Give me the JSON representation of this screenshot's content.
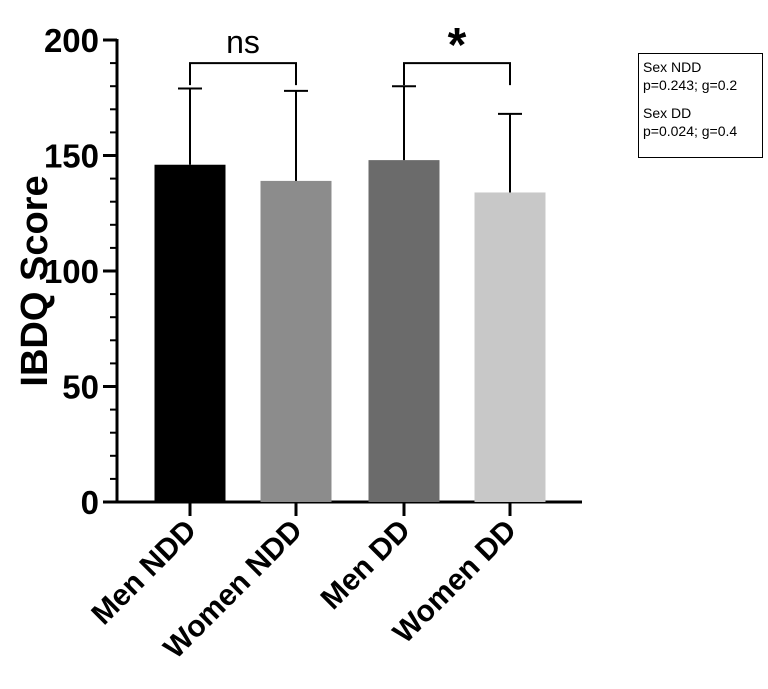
{
  "chart_data": {
    "type": "bar",
    "categories": [
      "Men NDD",
      "Women NDD",
      "Men DD",
      "Women DD"
    ],
    "values": [
      146,
      139,
      148,
      134
    ],
    "errors": [
      33,
      39,
      32,
      34
    ],
    "colors": [
      "#000000",
      "#8c8c8c",
      "#6b6b6b",
      "#c8c8c8"
    ],
    "ylabel": "IBDQ Score",
    "xlabel": "",
    "ylim": [
      0,
      200
    ],
    "yticks": [
      0,
      50,
      100,
      150,
      200
    ],
    "minor_tick_step": 10,
    "comparisons": [
      {
        "from": 0,
        "to": 1,
        "label": "ns",
        "level": 190
      },
      {
        "from": 2,
        "to": 3,
        "label": "*",
        "level": 190
      }
    ],
    "legend": [
      {
        "title": "Sex NDD",
        "stats": "p=0.243; g=0.2"
      },
      {
        "title": "Sex DD",
        "stats": "p=0.024; g=0.4"
      }
    ]
  }
}
